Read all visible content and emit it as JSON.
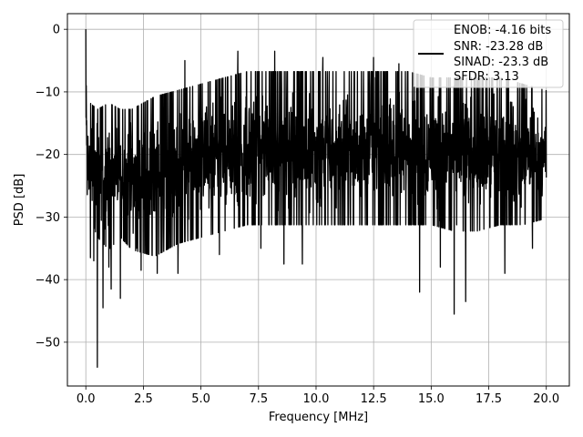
{
  "chart_data": {
    "type": "line",
    "xlabel": "Frequency [MHz]",
    "ylabel": "PSD [dB]",
    "xlim": [
      -0.8,
      21.0
    ],
    "ylim": [
      -57,
      2.5
    ],
    "xticks": [
      0.0,
      2.5,
      5.0,
      7.5,
      10.0,
      12.5,
      15.0,
      17.5,
      20.0
    ],
    "xtick_labels": [
      "0.0",
      "2.5",
      "5.0",
      "7.5",
      "10.0",
      "12.5",
      "15.0",
      "17.5",
      "20.0"
    ],
    "yticks": [
      0,
      -10,
      -20,
      -30,
      -40,
      -50
    ],
    "ytick_labels": [
      "0",
      "−10",
      "−20",
      "−30",
      "−40",
      "−50"
    ],
    "grid": true,
    "legend": {
      "placement": "top-right",
      "lines": [
        "ENOB: -4.16 bits",
        "SNR: -23.28 dB",
        "SINAD: -23.3 dB",
        "SFDR: 3.13"
      ]
    },
    "series": [
      {
        "color": "#000000",
        "x_range": [
          0.0,
          20.0
        ],
        "envelope": {
          "x": [
            0.0,
            0.1,
            0.2,
            0.5,
            1.0,
            1.5,
            2.0,
            3.0,
            4.0,
            5.0,
            6.0,
            7.0,
            8.0,
            9.0,
            10.0,
            11.0,
            12.0,
            13.0,
            14.0,
            15.0,
            16.0,
            17.0,
            18.0,
            19.0,
            20.0
          ],
          "max": [
            -9,
            -11,
            -12,
            -13,
            -12,
            -13,
            -13,
            -11,
            -10,
            -9,
            -8,
            -7,
            -7,
            -7,
            -7,
            -7,
            -7,
            -7,
            -7,
            -8,
            -8,
            -8,
            -8,
            -9,
            -10
          ],
          "min": [
            -18,
            -31,
            -30,
            -33,
            -35,
            -33,
            -35,
            -36,
            -34,
            -33,
            -32,
            -31,
            -31,
            -31,
            -31,
            -31,
            -31,
            -31,
            -31,
            -31,
            -32,
            -32,
            -31,
            -31,
            -30
          ]
        },
        "features": [
          {
            "x": 0.0,
            "y": 0.0
          },
          {
            "x": 0.02,
            "y": -9.0
          },
          {
            "x": 0.05,
            "y": -18.5
          },
          {
            "x": 0.2,
            "y": -36.5
          },
          {
            "x": 0.35,
            "y": -37.0
          },
          {
            "x": 0.5,
            "y": -54.0
          },
          {
            "x": 0.75,
            "y": -44.5
          },
          {
            "x": 1.0,
            "y": -38.0
          },
          {
            "x": 1.1,
            "y": -41.5
          },
          {
            "x": 1.5,
            "y": -43.0
          },
          {
            "x": 2.2,
            "y": -35.0
          },
          {
            "x": 2.4,
            "y": -38.5
          },
          {
            "x": 3.1,
            "y": -39.0
          },
          {
            "x": 4.0,
            "y": -39.0
          },
          {
            "x": 5.8,
            "y": -36.0
          },
          {
            "x": 7.6,
            "y": -35.0
          },
          {
            "x": 8.6,
            "y": -37.5
          },
          {
            "x": 9.4,
            "y": -37.5
          },
          {
            "x": 14.5,
            "y": -42.0
          },
          {
            "x": 15.4,
            "y": -38.0
          },
          {
            "x": 16.0,
            "y": -45.5
          },
          {
            "x": 16.5,
            "y": -43.5
          },
          {
            "x": 18.2,
            "y": -39.0
          },
          {
            "x": 19.4,
            "y": -35.0
          },
          {
            "x": 4.3,
            "y": -5.0
          },
          {
            "x": 6.6,
            "y": -3.5
          },
          {
            "x": 8.2,
            "y": -3.5
          },
          {
            "x": 10.3,
            "y": -4.5
          },
          {
            "x": 12.5,
            "y": -4.5
          },
          {
            "x": 13.6,
            "y": -5.5
          }
        ]
      }
    ]
  }
}
